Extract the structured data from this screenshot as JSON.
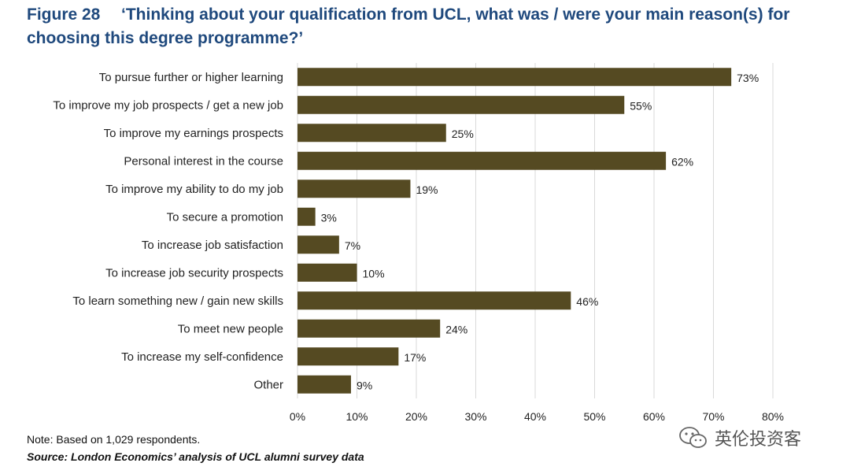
{
  "header": {
    "figure_label": "Figure 28",
    "question": "‘Thinking about your qualification from UCL, what was / were your main reason(s) for choosing this degree programme?’"
  },
  "footer": {
    "note": "Note: Based on 1,029 respondents.",
    "source": "Source: London Economics’ analysis of UCL alumni survey data"
  },
  "watermark": {
    "text": "英伦投资客",
    "icon": "wechat-icon"
  },
  "chart_data": {
    "type": "bar",
    "orientation": "horizontal",
    "categories": [
      "To pursue further or higher learning",
      "To improve my job prospects / get a new job",
      "To improve my earnings prospects",
      "Personal interest in the course",
      "To improve my ability to do my job",
      "To secure a promotion",
      "To increase job satisfaction",
      "To increase job security prospects",
      "To learn something new / gain new skills",
      "To meet new people",
      "To increase my self-confidence",
      "Other"
    ],
    "values": [
      73,
      55,
      25,
      62,
      19,
      3,
      7,
      10,
      46,
      24,
      17,
      9
    ],
    "data_labels": [
      "73%",
      "55%",
      "25%",
      "62%",
      "19%",
      "3%",
      "7%",
      "10%",
      "46%",
      "24%",
      "17%",
      "9%"
    ],
    "xlim": [
      0,
      80
    ],
    "xticks": [
      0,
      10,
      20,
      30,
      40,
      50,
      60,
      70,
      80
    ],
    "xtick_labels": [
      "0%",
      "10%",
      "20%",
      "30%",
      "40%",
      "50%",
      "60%",
      "70%",
      "80%"
    ],
    "grid": "vertical",
    "bar_color": "#554a22",
    "grid_color": "#d9d9d9"
  }
}
